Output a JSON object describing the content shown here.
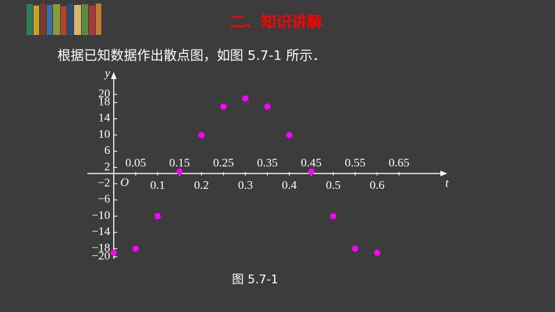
{
  "header": {
    "title": "二、知识讲解"
  },
  "intro": "根据已知数据作出散点图，如图 5.7-1 所示．",
  "caption": "图 5.7-1",
  "chart_data": {
    "type": "scatter",
    "xlabel": "t",
    "ylabel": "y",
    "origin_label": "O",
    "x": [
      0,
      0.05,
      0.1,
      0.15,
      0.2,
      0.25,
      0.3,
      0.35,
      0.4,
      0.45,
      0.5,
      0.55,
      0.6
    ],
    "values": [
      -19,
      -18,
      -10,
      1,
      10,
      17,
      19,
      17,
      10,
      1,
      -10,
      -18,
      -19
    ],
    "color": "#ff00ff",
    "xlim": [
      -0.06,
      0.76
    ],
    "ylim": [
      -20.5,
      25.5
    ],
    "xticks": [
      0.05,
      0.1,
      0.15,
      0.2,
      0.25,
      0.3,
      0.35,
      0.4,
      0.45,
      0.5,
      0.55,
      0.6,
      0.65
    ],
    "yticks": [
      20,
      18,
      14,
      10,
      6,
      2,
      {
        "value": -2,
        "label": "−2"
      },
      {
        "value": -6,
        "label": "−6"
      },
      {
        "value": -10,
        "label": "−10"
      },
      {
        "value": -14,
        "label": "−14"
      },
      {
        "value": -18,
        "label": "−18"
      },
      {
        "value": -20,
        "label": "−20"
      }
    ]
  }
}
